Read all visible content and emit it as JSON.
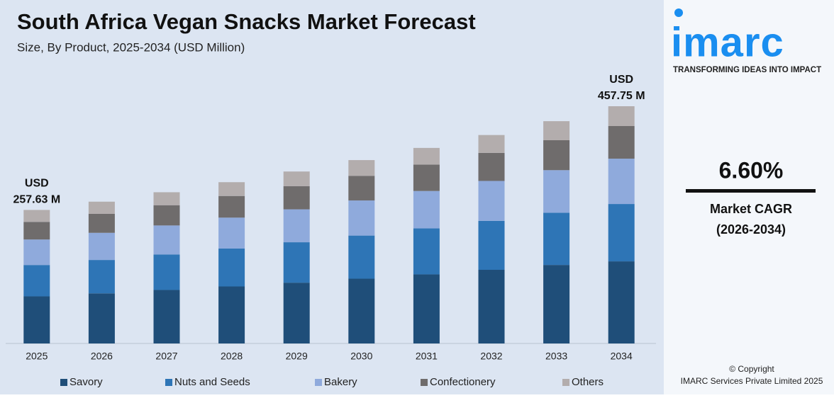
{
  "chart_data": {
    "type": "stacked-bar",
    "title": "South Africa Vegan Snacks Market Forecast",
    "subtitle": "Size, By Product, 2025-2034 (USD Million)",
    "categories": [
      "2025",
      "2026",
      "2027",
      "2028",
      "2029",
      "2030",
      "2031",
      "2032",
      "2033",
      "2034"
    ],
    "series": [
      {
        "name": "Savory",
        "color": "#1f4e79",
        "values": [
          90.9,
          96.7,
          103.2,
          110.0,
          117.3,
          125.0,
          133.3,
          142.1,
          151.5,
          158.4
        ]
      },
      {
        "name": "Nuts and Seeds",
        "color": "#2e75b6",
        "values": [
          60.5,
          64.4,
          68.6,
          73.2,
          78.0,
          83.2,
          88.7,
          94.5,
          100.8,
          110.7
        ]
      },
      {
        "name": "Bakery",
        "color": "#8faadc",
        "values": [
          49.2,
          52.4,
          55.9,
          59.6,
          63.5,
          67.7,
          72.2,
          77.0,
          82.1,
          87.5
        ]
      },
      {
        "name": "Confectionery",
        "color": "#6f6c6c",
        "values": [
          34.0,
          36.6,
          39.1,
          41.8,
          44.6,
          47.6,
          50.8,
          54.2,
          57.8,
          62.9
        ]
      },
      {
        "name": "Others",
        "color": "#b3adad",
        "values": [
          23.03,
          23.5,
          25.0,
          26.6,
          28.4,
          30.3,
          32.3,
          34.4,
          36.7,
          38.25
        ]
      }
    ],
    "annotations": [
      {
        "value": 257.63,
        "lines": [
          "USD",
          "257.63 M"
        ]
      },
      {
        "value": 457.75,
        "lines": [
          "USD",
          "457.75 M"
        ]
      }
    ]
  },
  "side_panel": {
    "logo": "imarc",
    "tagline": "TRANSFORMING IDEAS INTO IMPACT",
    "cagr": "6.60%",
    "cagr_label": "Market CAGR",
    "cagr_period": "(2026-2034)",
    "copyright": "© Copyright",
    "company": "IMARC Services Private Limited 2025"
  }
}
